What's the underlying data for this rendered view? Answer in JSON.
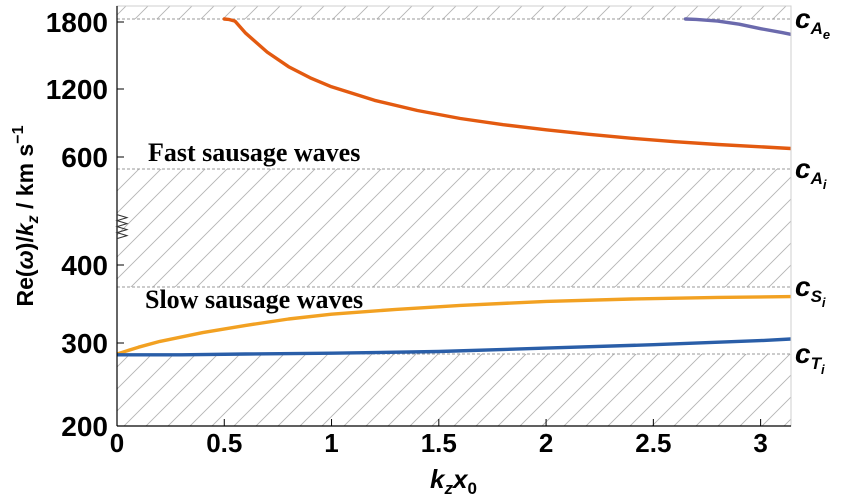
{
  "chart_data": {
    "type": "line",
    "xlabel": "k_z x_0",
    "ylabel": "Re(ω)/k_z / km s^-1",
    "xlim": [
      0,
      3.14159
    ],
    "x_ticks": [
      "0",
      "0.5",
      "1",
      "1.5",
      "2",
      "2.5",
      "3"
    ],
    "x_tick_values": [
      0,
      0.5,
      1,
      1.5,
      2,
      2.5,
      3
    ],
    "y_ticks": [
      "200",
      "300",
      "400",
      "600",
      "1200",
      "1800"
    ],
    "y_axis_note": "broken / non-linear axis: 200-400 and 600-1800 use different scales",
    "axis_break_y": 460,
    "grid": false,
    "annotations": [
      {
        "id": "fast",
        "text": "Fast sausage waves"
      },
      {
        "id": "slow",
        "text": "Slow sausage waves"
      }
    ],
    "speed_labels": [
      {
        "id": "cAe",
        "base": "c",
        "sub": "A",
        "subsub": "e",
        "value": 1870
      },
      {
        "id": "cAi",
        "base": "c",
        "sub": "A",
        "subsub": "i",
        "value": 550
      },
      {
        "id": "cSi",
        "base": "c",
        "sub": "S",
        "subsub": "i",
        "value": 370
      },
      {
        "id": "cTi",
        "base": "c",
        "sub": "T",
        "subsub": "i",
        "value": 287
      }
    ],
    "hatched_bands": [
      {
        "from": 1870,
        "to": 1950
      },
      {
        "from": 370,
        "to": 550
      },
      {
        "from": 200,
        "to": 287
      }
    ],
    "series": [
      {
        "name": "fast-sausage-mode-1",
        "color": "#e35a10",
        "x": [
          0.5,
          0.52,
          0.55,
          0.6,
          0.7,
          0.8,
          0.9,
          1.0,
          1.2,
          1.4,
          1.6,
          1.8,
          2.0,
          2.2,
          2.4,
          2.6,
          2.8,
          3.0,
          3.14
        ],
        "y": [
          1870,
          1860,
          1820,
          1700,
          1530,
          1400,
          1300,
          1220,
          1100,
          1010,
          940,
          885,
          840,
          800,
          765,
          735,
          710,
          690,
          675
        ]
      },
      {
        "name": "fast-sausage-mode-2",
        "color": "#6b6aad",
        "x": [
          2.65,
          2.7,
          2.8,
          2.9,
          3.0,
          3.1,
          3.14
        ],
        "y": [
          1870,
          1860,
          1820,
          1780,
          1740,
          1705,
          1690
        ]
      },
      {
        "name": "slow-sausage-upper",
        "color": "#f2a122",
        "x": [
          0,
          0.1,
          0.2,
          0.4,
          0.6,
          0.8,
          1.0,
          1.3,
          1.6,
          2.0,
          2.4,
          2.8,
          3.14
        ],
        "y": [
          287,
          295,
          302,
          313,
          322,
          330,
          336,
          342,
          347,
          352,
          355,
          357,
          358
        ]
      },
      {
        "name": "slow-sausage-lower",
        "color": "#2a5ea8",
        "x": [
          0,
          0.3,
          0.6,
          1.0,
          1.5,
          2.0,
          2.5,
          3.0,
          3.14
        ],
        "y": [
          286,
          286,
          287,
          288,
          290,
          294,
          298,
          303,
          305
        ]
      }
    ]
  }
}
